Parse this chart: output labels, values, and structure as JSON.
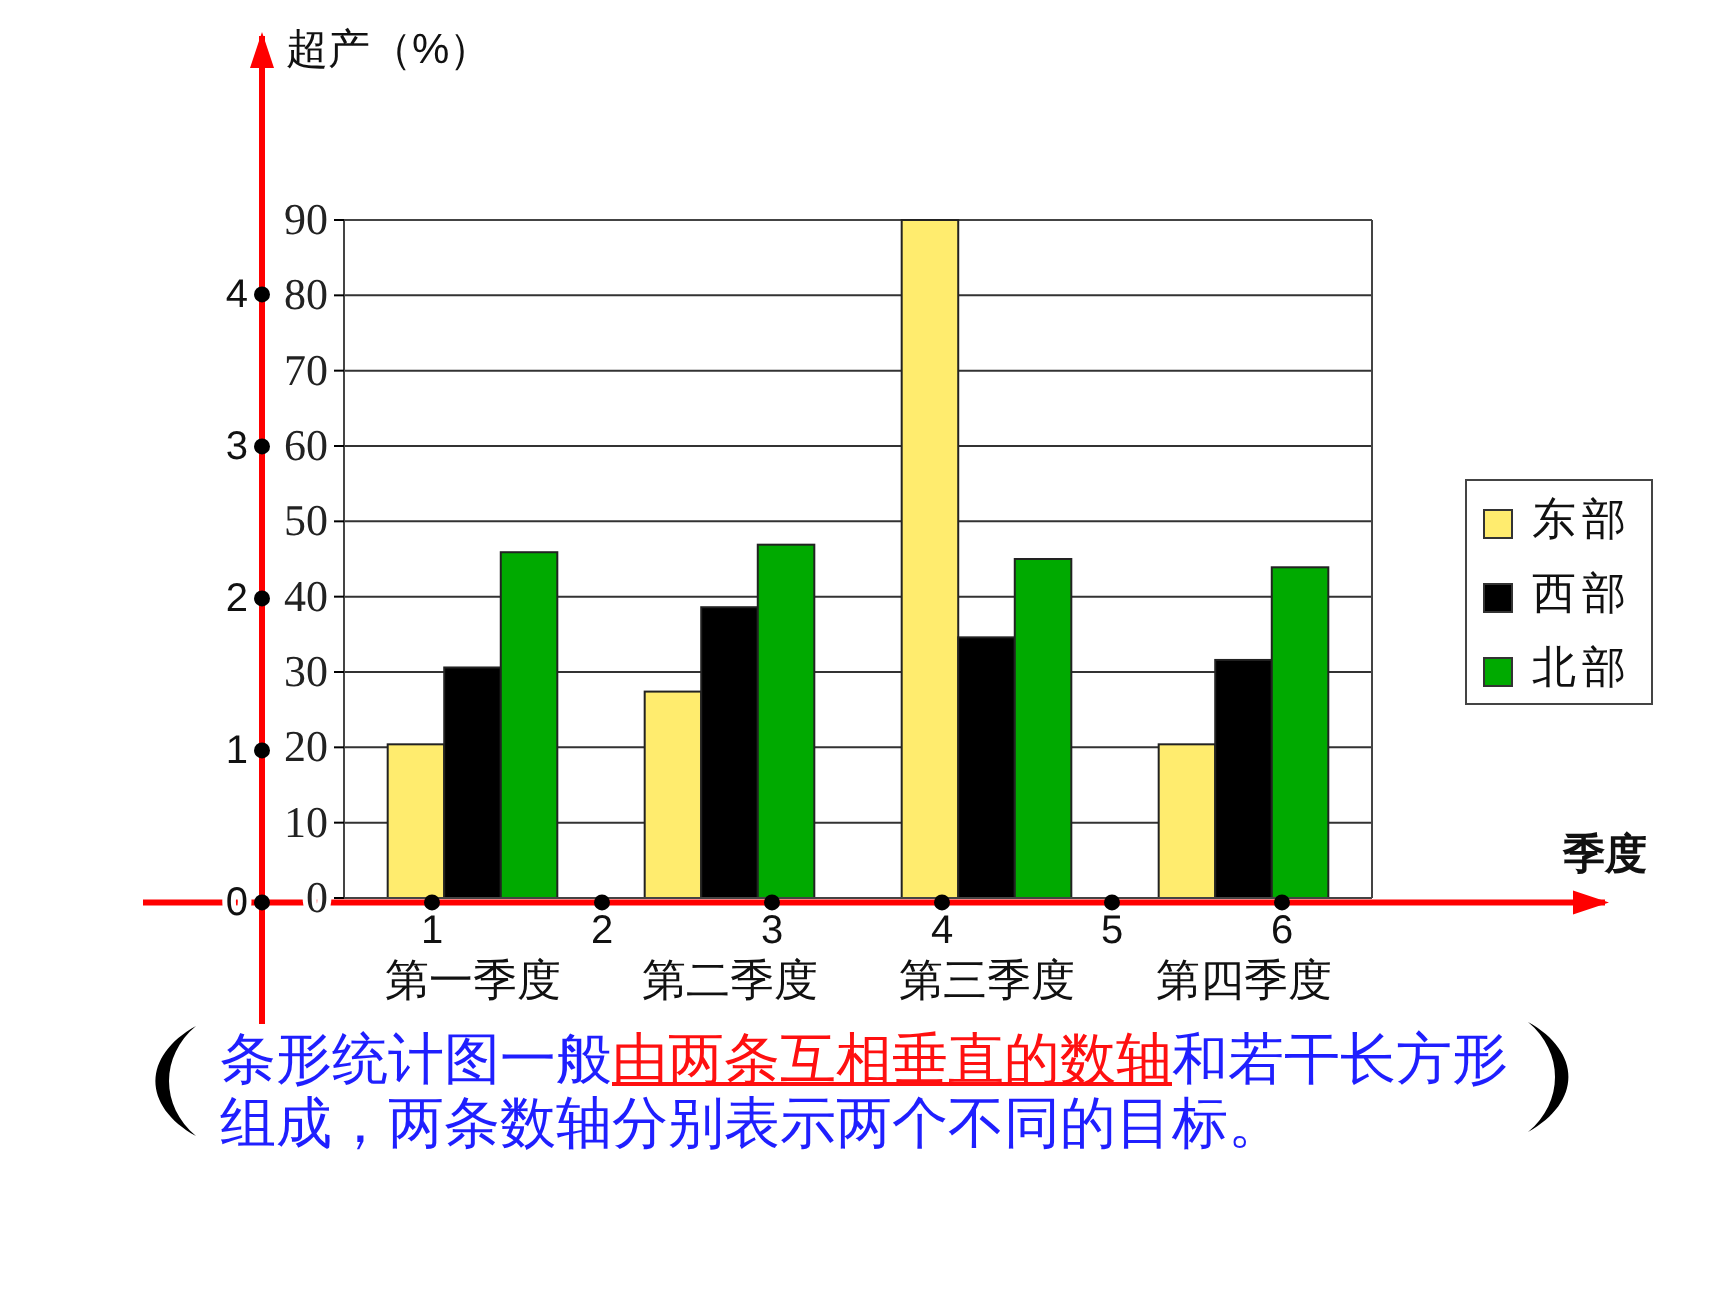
{
  "chart_data": {
    "type": "bar",
    "xlabel": "季度",
    "ylabel": "超产（%）",
    "categories": [
      "第一季度",
      "第二季度",
      "第三季度",
      "第四季度"
    ],
    "series": [
      {
        "name": "东部",
        "color": "#ffec6e",
        "values": [
          20.4,
          27.4,
          90,
          20.4
        ]
      },
      {
        "name": "西部",
        "color": "#000000",
        "values": [
          30.6,
          38.6,
          34.6,
          31.6
        ]
      },
      {
        "name": "北部",
        "color": "#00aa00",
        "values": [
          45.9,
          46.9,
          45,
          43.9
        ]
      }
    ],
    "ylim": [
      0,
      90
    ],
    "yticks": [
      0,
      10,
      20,
      30,
      40,
      50,
      60,
      70,
      80,
      90
    ],
    "x2lim": [
      -0.7,
      7.9
    ],
    "x2ticks": [
      1,
      2,
      3,
      4,
      5,
      6
    ],
    "y2lim": [
      -0.8,
      5.7
    ],
    "y2ticks": [
      0,
      1,
      2,
      3,
      4
    ],
    "grid": "y",
    "legend": "right",
    "annotations": [
      "条形统计图一般",
      "由两条互相垂直的数轴",
      "和若干长方形",
      "组成，两条数轴分别表示两个不同的目标。"
    ]
  }
}
